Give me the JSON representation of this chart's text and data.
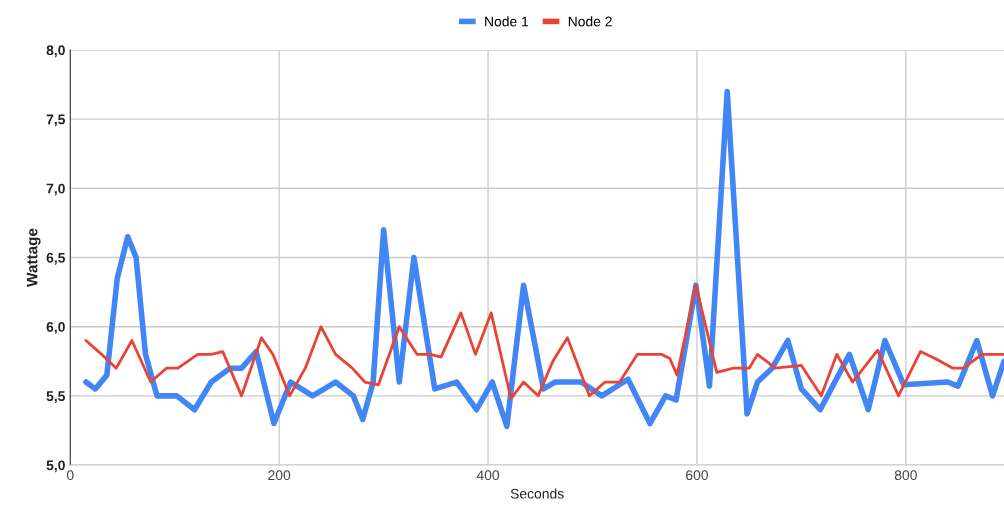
{
  "chart_data": {
    "type": "line",
    "xlabel": "Seconds",
    "ylabel": "Wattage",
    "legend": "top",
    "grid": true,
    "marker": "none",
    "line_style": "solid",
    "xlim": [
      0,
      894
    ],
    "xticks": [
      0,
      200,
      400,
      600,
      800
    ],
    "ylim": [
      5.0,
      8.0
    ],
    "yticks": [
      {
        "value": 5.0,
        "label": "5,0"
      },
      {
        "value": 5.5,
        "label": "5,5"
      },
      {
        "value": 6.0,
        "label": "6,0"
      },
      {
        "value": 6.5,
        "label": "6,5"
      },
      {
        "value": 7.0,
        "label": "7,0"
      },
      {
        "value": 7.5,
        "label": "7,5"
      },
      {
        "value": 8.0,
        "label": "8,0"
      }
    ],
    "series": [
      {
        "name": "Node 1",
        "color": "#4285f4",
        "x": [
          15,
          24,
          35,
          45,
          55,
          63,
          72,
          83,
          95,
          102,
          119,
          135,
          153,
          164,
          178,
          195,
          211,
          232,
          254,
          271,
          280,
          290,
          300,
          315,
          329,
          349,
          370,
          389,
          404,
          418,
          434,
          453,
          464,
          489,
          509,
          534,
          555,
          570,
          580,
          599,
          612,
          629,
          648,
          658,
          672,
          687,
          700,
          718,
          746,
          764,
          780,
          798,
          840,
          850,
          868,
          883,
          894
        ],
        "values": [
          5.6,
          5.55,
          5.65,
          6.35,
          6.65,
          6.5,
          5.8,
          5.5,
          5.5,
          5.5,
          5.4,
          5.6,
          5.7,
          5.7,
          5.82,
          5.3,
          5.6,
          5.5,
          5.6,
          5.5,
          5.33,
          5.6,
          6.7,
          5.6,
          6.5,
          5.55,
          5.6,
          5.4,
          5.6,
          5.28,
          6.3,
          5.55,
          5.6,
          5.6,
          5.5,
          5.62,
          5.3,
          5.5,
          5.47,
          6.3,
          5.57,
          7.7,
          5.37,
          5.6,
          5.7,
          5.9,
          5.55,
          5.4,
          5.8,
          5.4,
          5.9,
          5.58,
          5.6,
          5.57,
          5.9,
          5.5,
          5.75
        ]
      },
      {
        "name": "Node 2",
        "color": "#ea4335",
        "x": [
          15,
          30,
          44,
          59,
          77,
          92,
          103,
          122,
          135,
          146,
          164,
          183,
          194,
          210,
          225,
          240,
          254,
          270,
          282,
          295,
          315,
          332,
          345,
          355,
          374,
          388,
          403,
          422,
          434,
          448,
          462,
          476,
          497,
          512,
          526,
          543,
          566,
          574,
          581,
          599,
          619,
          635,
          650,
          658,
          675,
          700,
          719,
          734,
          749,
          773,
          793,
          814,
          828,
          845,
          855,
          873,
          894
        ],
        "values": [
          5.9,
          5.8,
          5.7,
          5.9,
          5.6,
          5.7,
          5.7,
          5.8,
          5.8,
          5.82,
          5.5,
          5.92,
          5.8,
          5.5,
          5.7,
          6.0,
          5.8,
          5.7,
          5.6,
          5.58,
          6.0,
          5.8,
          5.8,
          5.78,
          6.1,
          5.8,
          6.1,
          5.48,
          5.6,
          5.5,
          5.75,
          5.92,
          5.5,
          5.6,
          5.6,
          5.8,
          5.8,
          5.77,
          5.65,
          6.3,
          5.67,
          5.7,
          5.7,
          5.8,
          5.7,
          5.72,
          5.5,
          5.8,
          5.6,
          5.83,
          5.5,
          5.82,
          5.77,
          5.7,
          5.7,
          5.8,
          5.8
        ]
      }
    ]
  }
}
